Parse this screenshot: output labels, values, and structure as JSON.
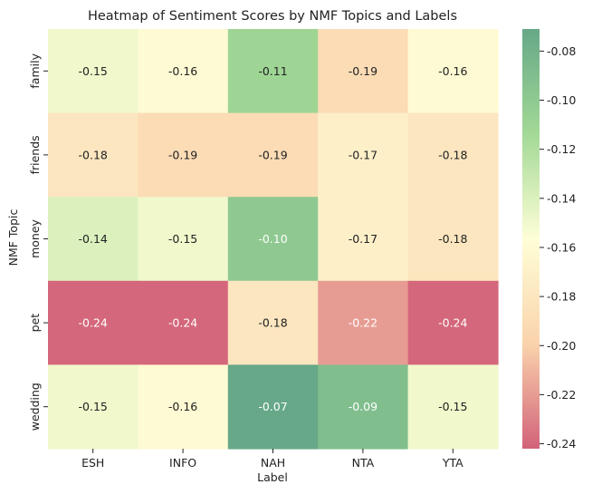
{
  "chart_data": {
    "type": "heatmap",
    "title": "Heatmap of Sentiment Scores by NMF Topics and Labels",
    "xlabel": "Label",
    "ylabel": "NMF Topic",
    "x_categories": [
      "ESH",
      "INFO",
      "NAH",
      "NTA",
      "YTA"
    ],
    "y_categories": [
      "family",
      "friends",
      "money",
      "pet",
      "wedding"
    ],
    "values": [
      [
        -0.15,
        -0.16,
        -0.11,
        -0.19,
        -0.16
      ],
      [
        -0.18,
        -0.19,
        -0.19,
        -0.17,
        -0.18
      ],
      [
        -0.14,
        -0.15,
        -0.1,
        -0.17,
        -0.18
      ],
      [
        -0.24,
        -0.24,
        -0.18,
        -0.22,
        -0.24
      ],
      [
        -0.15,
        -0.16,
        -0.07,
        -0.09,
        -0.15
      ]
    ],
    "value_format": "2 decimals",
    "colormap": "RdYlGn (alpha 0.6)",
    "color_range": [
      -0.242,
      -0.071
    ],
    "colorbar_ticks": [
      "-0.08",
      "-0.10",
      "-0.12",
      "-0.14",
      "-0.16",
      "-0.18",
      "-0.20",
      "-0.22",
      "-0.24"
    ],
    "colorbar_tick_values": [
      -0.08,
      -0.1,
      -0.12,
      -0.14,
      -0.16,
      -0.18,
      -0.2,
      -0.22,
      -0.24
    ],
    "grid": false,
    "colors": {
      "low": "#d26279",
      "mid_low": "#fad3ac",
      "mid": "#fefed6",
      "mid_high": "#a3d996",
      "high": "#66a888"
    }
  }
}
